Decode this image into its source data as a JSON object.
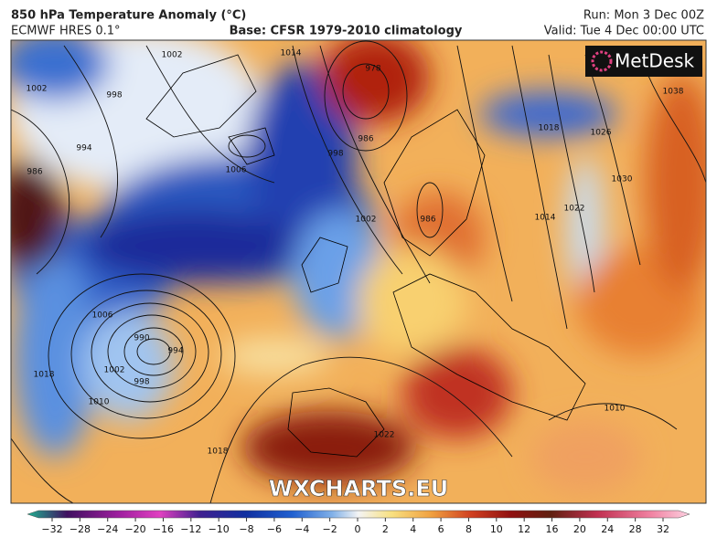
{
  "header": {
    "title": "850 hPa Temperature Anomaly (°C)",
    "model": "ECMWF HRES 0.1°",
    "base": "Base: CFSR 1979-2010 climatology",
    "run": "Run: Mon 3 Dec 00Z",
    "valid": "Valid: Tue 4 Dec 00:00 UTC"
  },
  "logo": "MetDesk",
  "watermark": "WXCHARTS.EU",
  "isobar_labels": [
    1002,
    998,
    994,
    986,
    1002,
    1006,
    1014,
    978,
    986,
    998,
    1002,
    986,
    1006,
    990,
    994,
    1002,
    998,
    1010,
    1018,
    1018,
    1018,
    1014,
    1022,
    1026,
    1030,
    1038,
    1010,
    1022
  ],
  "colorbar": {
    "ticks": [
      {
        "value": -32,
        "label": "−32"
      },
      {
        "value": -28,
        "label": "−28"
      },
      {
        "value": -24,
        "label": "−24"
      },
      {
        "value": -20,
        "label": "−20"
      },
      {
        "value": -16,
        "label": "−16"
      },
      {
        "value": -12,
        "label": "−12"
      },
      {
        "value": -10,
        "label": "−10"
      },
      {
        "value": -8,
        "label": "−8"
      },
      {
        "value": -6,
        "label": "−6"
      },
      {
        "value": -4,
        "label": "−4"
      },
      {
        "value": -2,
        "label": "−2"
      },
      0,
      2,
      4,
      6,
      8,
      10,
      12,
      16,
      20,
      24,
      28,
      32
    ]
  }
}
